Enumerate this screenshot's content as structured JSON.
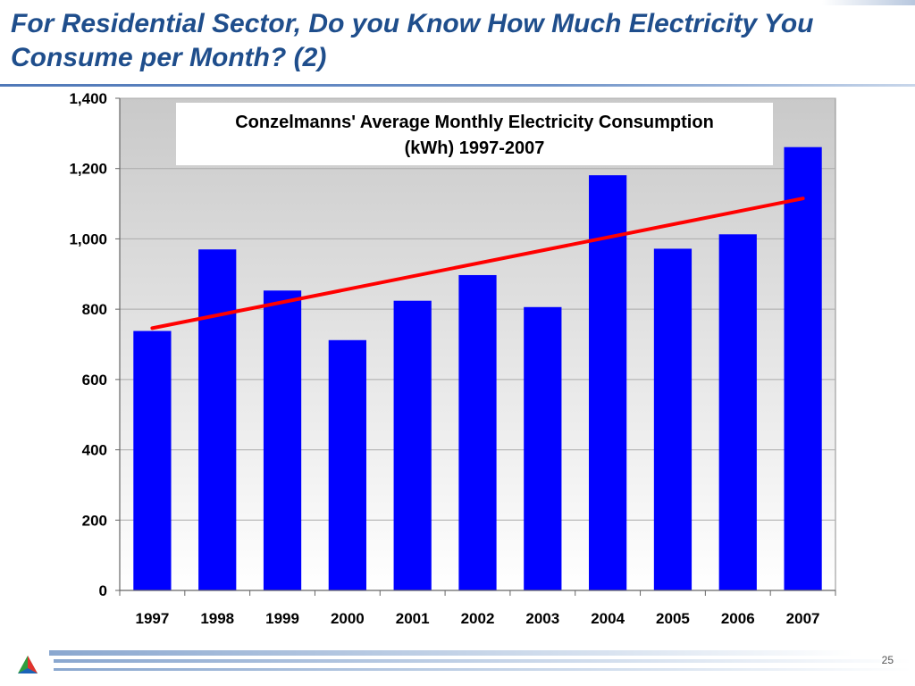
{
  "slide": {
    "title": "For Residential Sector, Do you Know How Much Electricity You Consume per Month? (2)",
    "page_number": "25"
  },
  "colors": {
    "title": "#1f4e8c",
    "bar": "#0000ff",
    "trend": "#ff0000",
    "plot_background_top": "#c9c9c9",
    "plot_background_bottom": "#ffffff"
  },
  "icons": {
    "logo": "tricolor-triangle-logo"
  },
  "chart_data": {
    "type": "bar",
    "title": "Conzelmanns' Average Monthly Electricity Consumption (kWh) 1997-2007",
    "title_lines": [
      "Conzelmanns' Average Monthly Electricity Consumption",
      "(kWh) 1997-2007"
    ],
    "categories": [
      "1997",
      "1998",
      "1999",
      "2000",
      "2001",
      "2002",
      "2003",
      "2004",
      "2005",
      "2006",
      "2007"
    ],
    "values": [
      738,
      970,
      853,
      712,
      824,
      897,
      806,
      1181,
      972,
      1013,
      1261
    ],
    "trendline": {
      "type": "linear",
      "start": 746,
      "end": 1115
    },
    "ylim": [
      0,
      1400
    ],
    "yticks": [
      0,
      200,
      400,
      600,
      800,
      1000,
      1200,
      1400
    ],
    "ytick_labels": [
      "0",
      "200",
      "400",
      "600",
      "800",
      "1,000",
      "1,200",
      "1,400"
    ],
    "xlabel": "",
    "ylabel": "",
    "grid": true,
    "legend": false
  }
}
